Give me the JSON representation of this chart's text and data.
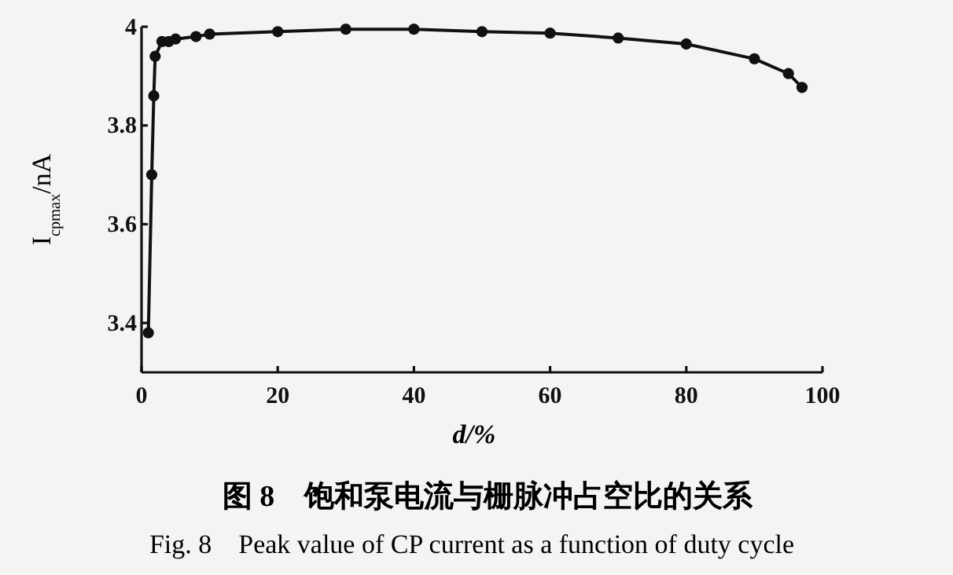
{
  "chart_data": {
    "type": "line",
    "xlabel": "d/%",
    "ylabel": "I$_{cpmax}$/nA",
    "x": [
      1,
      1.5,
      1.8,
      2,
      3,
      4,
      5,
      8,
      10,
      20,
      30,
      40,
      50,
      60,
      70,
      80,
      90,
      95,
      97
    ],
    "series": [
      {
        "color": "#111111",
        "values": [
          3.38,
          3.7,
          3.86,
          3.94,
          3.97,
          3.97,
          3.975,
          3.98,
          3.985,
          3.99,
          3.995,
          3.995,
          3.99,
          3.987,
          3.977,
          3.965,
          3.935,
          3.905,
          3.877
        ]
      }
    ],
    "xlim": [
      0,
      100
    ],
    "xticks": [
      0,
      20,
      40,
      60,
      80,
      100
    ],
    "ylim": [
      3.3,
      4.0
    ],
    "yticks": [
      3.4,
      3.6,
      3.8,
      4
    ],
    "marker": "circle",
    "line_style": "solid",
    "grid": false,
    "annotations": [
      "图 8　饱和泵电流与栅脉冲占空比的关系",
      "Fig. 8　Peak value of CP current as a function of duty cycle"
    ]
  }
}
